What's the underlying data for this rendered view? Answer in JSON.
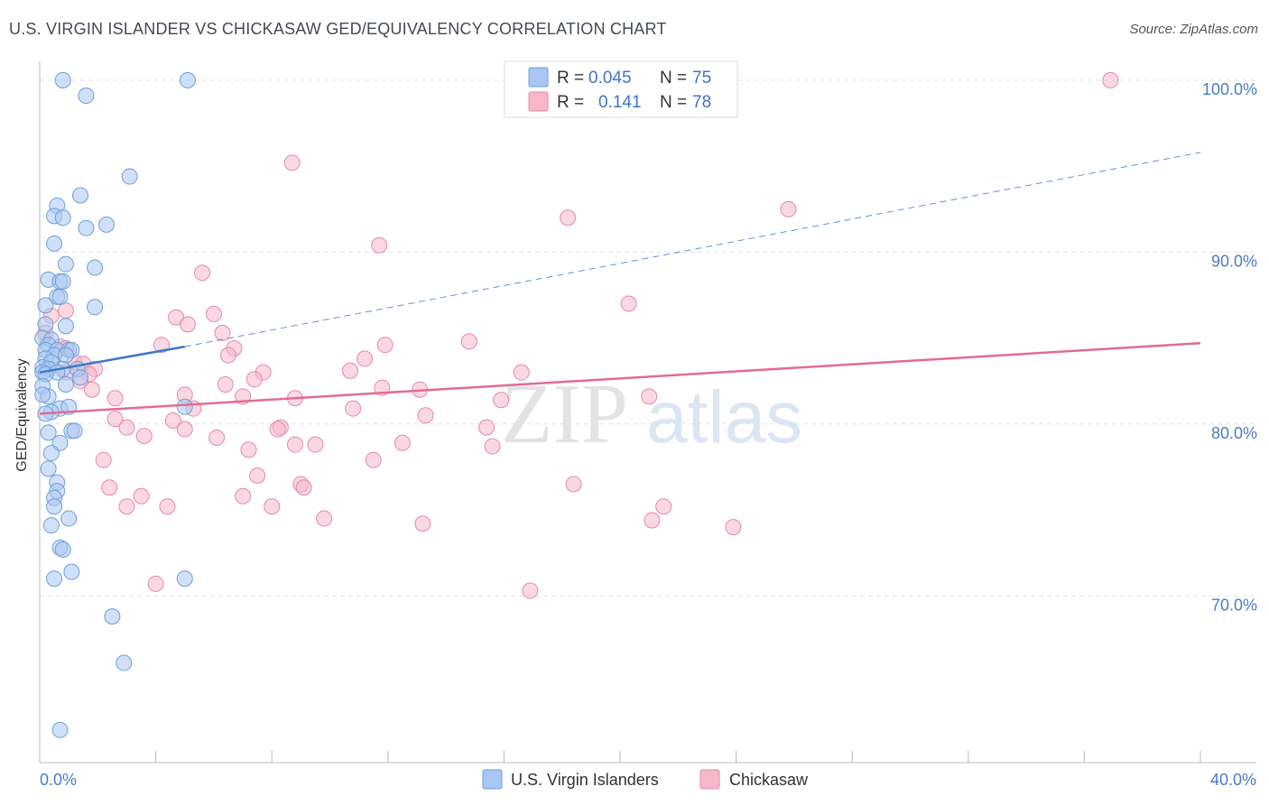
{
  "header": {
    "title": "U.S. VIRGIN ISLANDER VS CHICKASAW GED/EQUIVALENCY CORRELATION CHART",
    "source": "Source: ZipAtlas.com"
  },
  "watermark": {
    "zip": "ZIP",
    "atlas": "atlas"
  },
  "legend_top": [
    {
      "r_label": "R =",
      "r_value": "0.045",
      "n_label": "N =",
      "n_value": "75",
      "color": "#a9c7f2"
    },
    {
      "r_label": "R =",
      "r_value": "0.141",
      "n_label": "N =",
      "n_value": "78",
      "color": "#f5b8cb"
    }
  ],
  "legend_bottom": [
    {
      "label": "U.S. Virgin Islanders",
      "color": "#a9c7f2"
    },
    {
      "label": "Chickasaw",
      "color": "#f5b8cb"
    }
  ],
  "chart_data": {
    "type": "scatter",
    "title": "U.S. VIRGIN ISLANDER VS CHICKASAW GED/EQUIVALENCY CORRELATION CHART",
    "xlabel": "",
    "ylabel": "GED/Equivalency",
    "xlim": [
      0,
      40
    ],
    "ylim": [
      60.3,
      102.2
    ],
    "x_tick_labels": [
      "0.0%",
      "40.0%"
    ],
    "y_ticks": [
      70,
      80,
      90,
      100
    ],
    "y_tick_labels": [
      "70.0%",
      "80.0%",
      "90.0%",
      "100.0%"
    ],
    "grid": true,
    "colors": {
      "blue_fill": "#a9c7f2",
      "blue_stroke": "#6f9fd8",
      "blue_line": "#3b78c9",
      "pink_fill": "#f5b8cb",
      "pink_stroke": "#e58aa7",
      "pink_line": "#e36b93",
      "tick_text": "#4a7cc7"
    },
    "series": [
      {
        "name": "U.S. Virgin Islanders",
        "R": 0.045,
        "N": 75,
        "trend": {
          "x": [
            0,
            5
          ],
          "y": [
            83.0,
            84.5
          ],
          "dashed_extension": {
            "x": [
              5,
              40
            ],
            "y": [
              84.5,
              95.8
            ]
          }
        },
        "points": [
          [
            0.8,
            100
          ],
          [
            1.6,
            99.1
          ],
          [
            5.1,
            100
          ],
          [
            3.1,
            94.4
          ],
          [
            1.4,
            93.3
          ],
          [
            0.6,
            92.7
          ],
          [
            0.5,
            92.1
          ],
          [
            0.8,
            92.0
          ],
          [
            1.6,
            91.4
          ],
          [
            2.3,
            91.6
          ],
          [
            0.5,
            90.5
          ],
          [
            0.9,
            89.3
          ],
          [
            1.9,
            89.1
          ],
          [
            0.3,
            88.4
          ],
          [
            0.7,
            88.3
          ],
          [
            0.8,
            88.3
          ],
          [
            0.6,
            87.4
          ],
          [
            0.7,
            87.4
          ],
          [
            0.2,
            86.9
          ],
          [
            1.9,
            86.8
          ],
          [
            0.2,
            85.8
          ],
          [
            0.9,
            85.7
          ],
          [
            0.1,
            85.0
          ],
          [
            0.4,
            84.9
          ],
          [
            0.3,
            84.6
          ],
          [
            0.2,
            84.3
          ],
          [
            0.6,
            84.3
          ],
          [
            1.0,
            84.3
          ],
          [
            1.1,
            84.3
          ],
          [
            0.5,
            84.0
          ],
          [
            0.9,
            84.0
          ],
          [
            0.2,
            83.8
          ],
          [
            0.4,
            83.6
          ],
          [
            0.1,
            83.3
          ],
          [
            0.3,
            83.2
          ],
          [
            0.8,
            83.2
          ],
          [
            0.6,
            83.0
          ],
          [
            0.1,
            83.0
          ],
          [
            0.2,
            82.9
          ],
          [
            1.3,
            83.2
          ],
          [
            1.4,
            82.7
          ],
          [
            0.1,
            82.2
          ],
          [
            0.9,
            82.3
          ],
          [
            0.3,
            81.6
          ],
          [
            0.1,
            81.7
          ],
          [
            0.7,
            80.9
          ],
          [
            1.0,
            81.0
          ],
          [
            0.4,
            80.7
          ],
          [
            0.2,
            80.6
          ],
          [
            5.0,
            81.0
          ],
          [
            1.1,
            79.6
          ],
          [
            1.2,
            79.6
          ],
          [
            0.3,
            79.5
          ],
          [
            0.7,
            78.9
          ],
          [
            0.4,
            78.3
          ],
          [
            0.3,
            77.4
          ],
          [
            0.6,
            76.6
          ],
          [
            0.6,
            76.1
          ],
          [
            0.5,
            75.7
          ],
          [
            0.5,
            75.2
          ],
          [
            1.0,
            74.5
          ],
          [
            0.4,
            74.1
          ],
          [
            0.7,
            72.8
          ],
          [
            0.8,
            72.7
          ],
          [
            1.1,
            71.4
          ],
          [
            0.5,
            71.0
          ],
          [
            5.0,
            71.0
          ],
          [
            2.5,
            68.8
          ],
          [
            2.9,
            66.1
          ],
          [
            0.7,
            62.2
          ]
        ]
      },
      {
        "name": "Chickasaw",
        "R": 0.141,
        "N": 78,
        "trend": {
          "x": [
            0,
            40
          ],
          "y": [
            80.6,
            84.7
          ]
        },
        "points": [
          [
            36.9,
            100
          ],
          [
            8.7,
            95.2
          ],
          [
            25.8,
            92.5
          ],
          [
            18.2,
            92.0
          ],
          [
            11.7,
            90.4
          ],
          [
            5.6,
            88.8
          ],
          [
            20.3,
            87.0
          ],
          [
            6.0,
            86.4
          ],
          [
            4.7,
            86.2
          ],
          [
            5.1,
            85.8
          ],
          [
            6.3,
            85.3
          ],
          [
            0.4,
            86.3
          ],
          [
            0.9,
            86.6
          ],
          [
            0.2,
            85.3
          ],
          [
            14.8,
            84.8
          ],
          [
            11.9,
            84.6
          ],
          [
            4.2,
            84.6
          ],
          [
            6.7,
            84.4
          ],
          [
            0.7,
            84.5
          ],
          [
            0.9,
            84.4
          ],
          [
            1.2,
            83.6
          ],
          [
            1.5,
            83.5
          ],
          [
            1.9,
            83.2
          ],
          [
            11.2,
            83.8
          ],
          [
            6.5,
            84.0
          ],
          [
            0.9,
            83.0
          ],
          [
            1.7,
            82.9
          ],
          [
            7.7,
            83.0
          ],
          [
            10.7,
            83.1
          ],
          [
            16.6,
            83.0
          ],
          [
            7.4,
            82.6
          ],
          [
            1.4,
            82.5
          ],
          [
            6.4,
            82.3
          ],
          [
            11.8,
            82.1
          ],
          [
            13.1,
            82.0
          ],
          [
            1.8,
            82.0
          ],
          [
            2.6,
            81.5
          ],
          [
            5.0,
            81.7
          ],
          [
            8.8,
            81.5
          ],
          [
            21.0,
            81.6
          ],
          [
            7.0,
            81.6
          ],
          [
            15.9,
            81.4
          ],
          [
            5.3,
            80.9
          ],
          [
            10.8,
            80.9
          ],
          [
            2.6,
            80.3
          ],
          [
            4.6,
            80.2
          ],
          [
            13.3,
            80.5
          ],
          [
            3.0,
            79.8
          ],
          [
            5.0,
            79.7
          ],
          [
            8.3,
            79.8
          ],
          [
            8.2,
            79.7
          ],
          [
            15.4,
            79.8
          ],
          [
            3.6,
            79.3
          ],
          [
            6.1,
            79.2
          ],
          [
            12.5,
            78.9
          ],
          [
            8.8,
            78.8
          ],
          [
            9.5,
            78.8
          ],
          [
            7.2,
            78.5
          ],
          [
            15.6,
            78.7
          ],
          [
            2.2,
            77.9
          ],
          [
            11.5,
            77.9
          ],
          [
            7.5,
            77.0
          ],
          [
            9.0,
            76.5
          ],
          [
            9.1,
            76.3
          ],
          [
            18.4,
            76.5
          ],
          [
            2.4,
            76.3
          ],
          [
            3.5,
            75.8
          ],
          [
            7.0,
            75.8
          ],
          [
            3.0,
            75.2
          ],
          [
            4.4,
            75.2
          ],
          [
            8.0,
            75.2
          ],
          [
            21.5,
            75.2
          ],
          [
            9.8,
            74.5
          ],
          [
            21.1,
            74.4
          ],
          [
            13.2,
            74.2
          ],
          [
            23.9,
            74.0
          ],
          [
            4.0,
            70.7
          ],
          [
            16.9,
            70.3
          ]
        ]
      }
    ]
  }
}
